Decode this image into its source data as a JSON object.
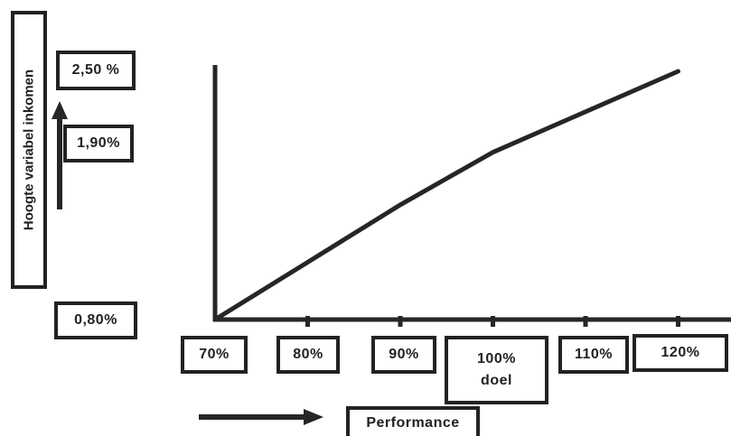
{
  "chart_data": {
    "type": "line",
    "xlabel": "Performance",
    "ylabel": "Hoogte variabel inkomen",
    "x": [
      "70%",
      "80%",
      "90%",
      "100%",
      "110%",
      "120%"
    ],
    "x_note": "doel",
    "y_labels": [
      "2,50 %",
      "1,90%",
      "0,80%"
    ],
    "series": [
      {
        "values": [
          0,
          0.425,
          0.85,
          1.24,
          1.54,
          1.84
        ]
      }
    ],
    "ylim": [
      0,
      1.9
    ],
    "color": "#262626"
  }
}
